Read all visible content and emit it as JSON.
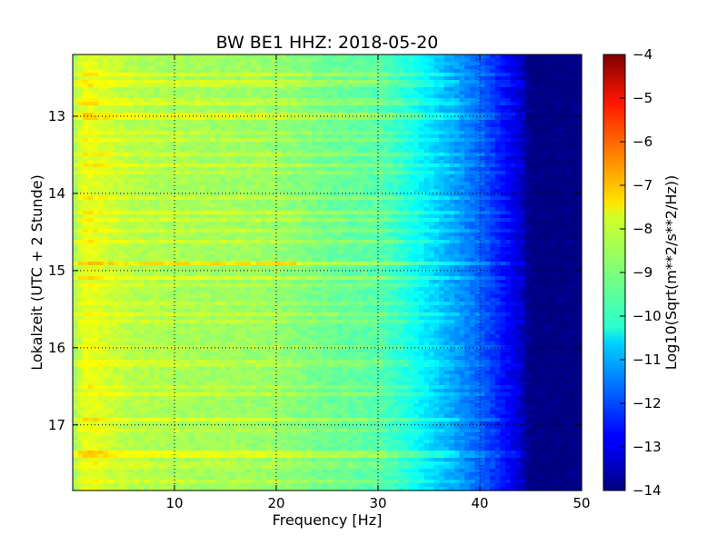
{
  "chart_data": {
    "type": "heatmap",
    "title": "BW BE1 HHZ: 2018-05-20",
    "xlabel": "Frequency [Hz]",
    "ylabel": "Lokalzeit (UTC + 2 Stunde)",
    "colorbar_label": "Log10(Sqrt(m**2/s**2/Hz))",
    "colormap": "jet",
    "xlim": [
      0,
      50
    ],
    "ylim": [
      12.2,
      17.85
    ],
    "y_inverted": true,
    "grid": true,
    "x_ticks": [
      10,
      20,
      30,
      40,
      50
    ],
    "y_ticks": [
      13,
      14,
      15,
      16,
      17
    ],
    "color_range": [
      -14,
      -4
    ],
    "colorbar_ticks": [
      -4,
      -5,
      -6,
      -7,
      -8,
      -9,
      -10,
      -11,
      -12,
      -13,
      -14
    ],
    "profile": {
      "frequency_hz": [
        0,
        1,
        2,
        4,
        6,
        10,
        15,
        20,
        25,
        30,
        33,
        36,
        38,
        40,
        42,
        44,
        45,
        50
      ],
      "level": [
        -8.8,
        -8.0,
        -8.0,
        -8.3,
        -8.5,
        -8.6,
        -8.7,
        -8.8,
        -9.2,
        -9.4,
        -10.0,
        -10.8,
        -11.3,
        -11.8,
        -12.5,
        -13.3,
        -14.0,
        -14.0
      ]
    },
    "band_times": [
      12.45,
      12.55,
      12.62,
      12.78,
      12.85,
      13.0,
      13.2,
      13.3,
      13.5,
      13.65,
      13.72,
      14.05,
      14.25,
      14.35,
      14.5,
      14.62,
      14.92,
      15.1,
      15.2,
      15.42,
      15.57,
      15.68,
      15.97,
      16.2,
      16.5,
      16.6,
      16.95,
      17.08,
      17.38,
      17.52,
      17.72
    ],
    "band_strength": [
      0.5,
      0.5,
      0.4,
      0.3,
      0.5,
      0.6,
      0.3,
      0.3,
      0.4,
      0.5,
      0.3,
      0.4,
      0.5,
      0.4,
      0.4,
      0.4,
      0.8,
      0.6,
      0.3,
      0.3,
      0.4,
      0.3,
      0.3,
      0.3,
      0.3,
      0.4,
      0.6,
      0.3,
      0.7,
      0.3,
      0.3
    ],
    "hotspot": {
      "time": 14.92,
      "frequency_hz": [
        1,
        22
      ],
      "level": -7.5
    }
  }
}
